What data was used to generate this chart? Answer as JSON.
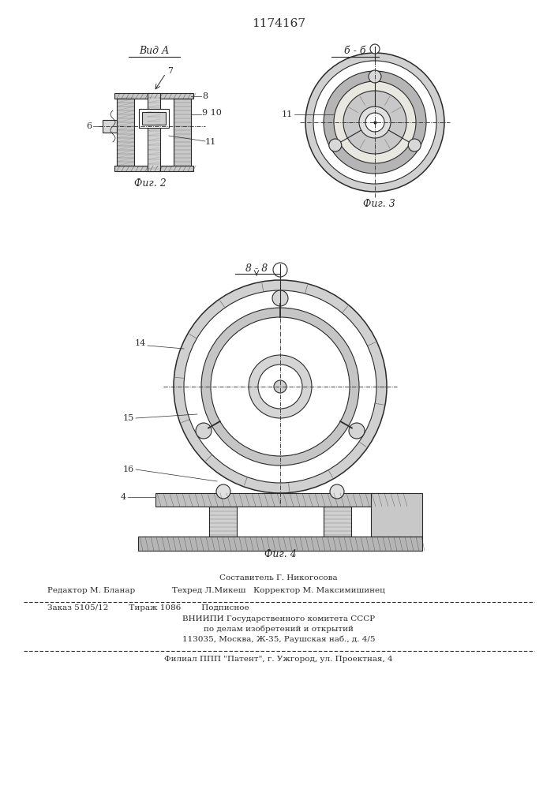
{
  "patent_number": "1174167",
  "background_color": "#ffffff",
  "line_color": "#2a2a2a",
  "title_fontsize": 11,
  "label_fontsize": 8.5,
  "footer_fontsize": 7.5,
  "fig2_label": "Фиг. 2",
  "fig3_label": "Фиг. 3",
  "fig4_label": "Фиг. 4",
  "view_a_label": "Вид А",
  "section_bb_label": "б - б",
  "section_vv_label": "8 - 8",
  "footer_line1_left": "Редактор М. Бланар",
  "footer_line1_center": "Составитель Г. Никогосова",
  "footer_line2_center": "Техред Л.Микеш   Корректор М. Максимишинец",
  "footer_line3": "Заказ 5105/12        Тираж 1086        Подписное",
  "footer_line4": "ВНИИПИ Государственного комитета СССР",
  "footer_line5": "по делам изобретений и открытий",
  "footer_line6": "113035, Москва, Ж-35, Раушская наб., д. 4/5",
  "footer_line7": "Филиал ППП \"Патент\", г. Ужгород, ул. Проектная, 4"
}
